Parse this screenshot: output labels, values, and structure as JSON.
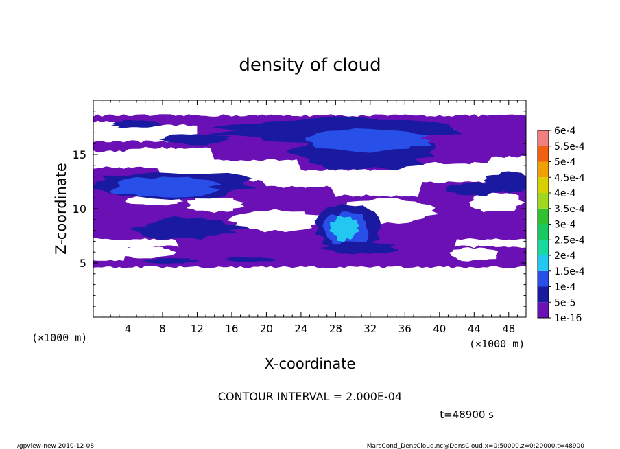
{
  "chart_data": {
    "type": "heatmap",
    "title": "density of cloud",
    "xlabel": "X-coordinate",
    "ylabel": "Z-coordinate",
    "x_unit": "(×1000 m)",
    "y_unit": "(×1000 m)",
    "xlim": [
      0,
      50
    ],
    "ylim": [
      0,
      20
    ],
    "x_ticks": [
      "4",
      "8",
      "12",
      "16",
      "20",
      "24",
      "28",
      "32",
      "36",
      "40",
      "44",
      "48"
    ],
    "y_ticks": [
      "5",
      "10",
      "15"
    ],
    "colorbar": {
      "labels": [
        "1e-16",
        "5e-5",
        "1e-4",
        "1.5e-4",
        "2e-4",
        "2.5e-4",
        "3e-4",
        "3.5e-4",
        "4e-4",
        "4.5e-4",
        "5e-4",
        "5.5e-4",
        "6e-4"
      ],
      "colors": [
        "#6a10b4",
        "#1a1aa0",
        "#2850e8",
        "#22c8f0",
        "#18d8a0",
        "#18c860",
        "#30c030",
        "#a0d820",
        "#d8d000",
        "#f0a000",
        "#f06010",
        "#f03020",
        "#f08080"
      ]
    },
    "contour_interval": "CONTOUR INTERVAL = 2.000E-04",
    "time_label": "t=48900 s"
  },
  "footer": {
    "left": "./gpview-new   2010-12-08",
    "right": "MarsCond_DensCloud.nc@DensCloud,x=0:50000,z=0:20000,t=48900"
  }
}
